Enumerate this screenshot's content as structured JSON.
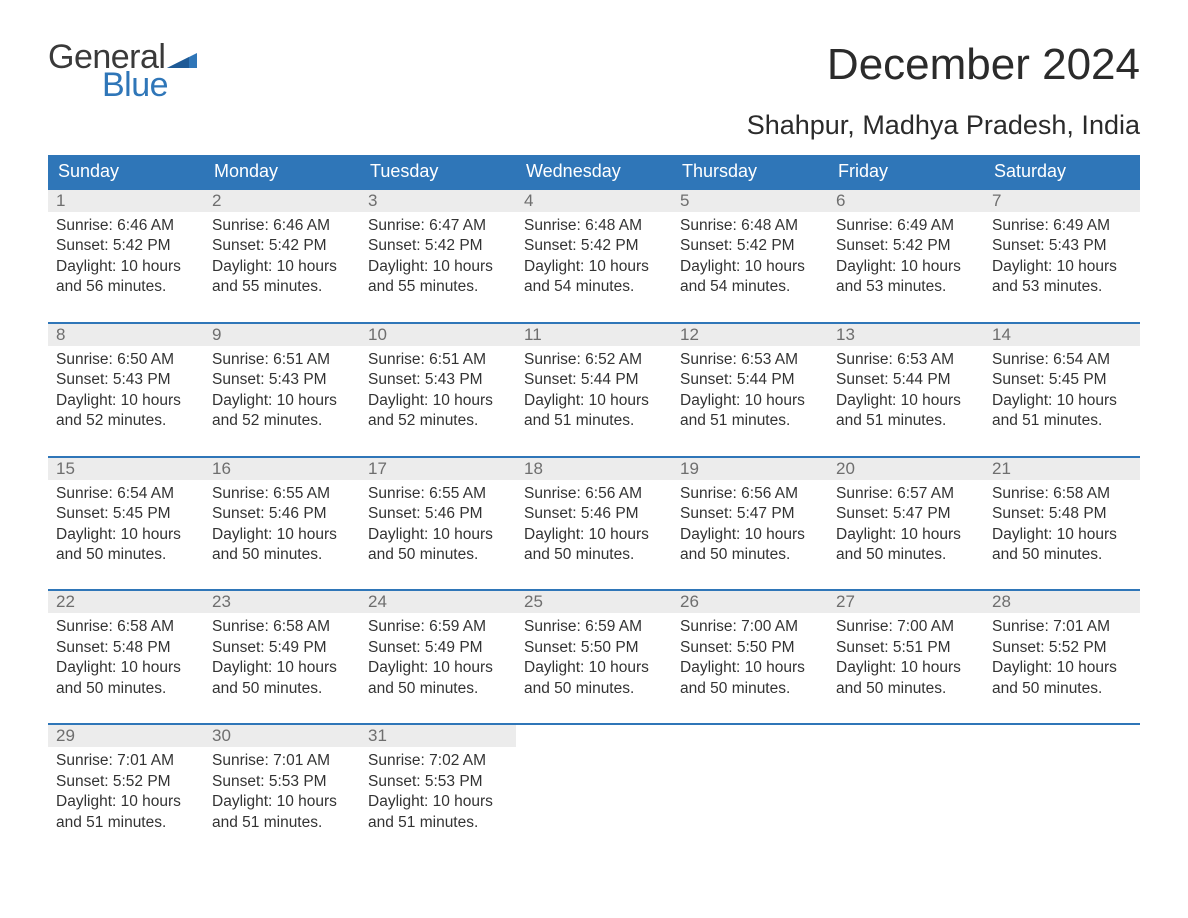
{
  "logo": {
    "general": "General",
    "blue": "Blue",
    "flag_color": "#2f76b8"
  },
  "title": "December 2024",
  "subtitle": "Shahpur, Madhya Pradesh, India",
  "colors": {
    "header_bg": "#2f76b8",
    "header_text": "#ffffff",
    "daynum_bg": "#ececec",
    "daynum_text": "#6e6e6e",
    "body_text": "#333333",
    "week_border": "#2f76b8",
    "page_bg": "#ffffff"
  },
  "day_names": [
    "Sunday",
    "Monday",
    "Tuesday",
    "Wednesday",
    "Thursday",
    "Friday",
    "Saturday"
  ],
  "weeks": [
    [
      {
        "n": "1",
        "sunrise": "Sunrise: 6:46 AM",
        "sunset": "Sunset: 5:42 PM",
        "dl1": "Daylight: 10 hours",
        "dl2": "and 56 minutes."
      },
      {
        "n": "2",
        "sunrise": "Sunrise: 6:46 AM",
        "sunset": "Sunset: 5:42 PM",
        "dl1": "Daylight: 10 hours",
        "dl2": "and 55 minutes."
      },
      {
        "n": "3",
        "sunrise": "Sunrise: 6:47 AM",
        "sunset": "Sunset: 5:42 PM",
        "dl1": "Daylight: 10 hours",
        "dl2": "and 55 minutes."
      },
      {
        "n": "4",
        "sunrise": "Sunrise: 6:48 AM",
        "sunset": "Sunset: 5:42 PM",
        "dl1": "Daylight: 10 hours",
        "dl2": "and 54 minutes."
      },
      {
        "n": "5",
        "sunrise": "Sunrise: 6:48 AM",
        "sunset": "Sunset: 5:42 PM",
        "dl1": "Daylight: 10 hours",
        "dl2": "and 54 minutes."
      },
      {
        "n": "6",
        "sunrise": "Sunrise: 6:49 AM",
        "sunset": "Sunset: 5:42 PM",
        "dl1": "Daylight: 10 hours",
        "dl2": "and 53 minutes."
      },
      {
        "n": "7",
        "sunrise": "Sunrise: 6:49 AM",
        "sunset": "Sunset: 5:43 PM",
        "dl1": "Daylight: 10 hours",
        "dl2": "and 53 minutes."
      }
    ],
    [
      {
        "n": "8",
        "sunrise": "Sunrise: 6:50 AM",
        "sunset": "Sunset: 5:43 PM",
        "dl1": "Daylight: 10 hours",
        "dl2": "and 52 minutes."
      },
      {
        "n": "9",
        "sunrise": "Sunrise: 6:51 AM",
        "sunset": "Sunset: 5:43 PM",
        "dl1": "Daylight: 10 hours",
        "dl2": "and 52 minutes."
      },
      {
        "n": "10",
        "sunrise": "Sunrise: 6:51 AM",
        "sunset": "Sunset: 5:43 PM",
        "dl1": "Daylight: 10 hours",
        "dl2": "and 52 minutes."
      },
      {
        "n": "11",
        "sunrise": "Sunrise: 6:52 AM",
        "sunset": "Sunset: 5:44 PM",
        "dl1": "Daylight: 10 hours",
        "dl2": "and 51 minutes."
      },
      {
        "n": "12",
        "sunrise": "Sunrise: 6:53 AM",
        "sunset": "Sunset: 5:44 PM",
        "dl1": "Daylight: 10 hours",
        "dl2": "and 51 minutes."
      },
      {
        "n": "13",
        "sunrise": "Sunrise: 6:53 AM",
        "sunset": "Sunset: 5:44 PM",
        "dl1": "Daylight: 10 hours",
        "dl2": "and 51 minutes."
      },
      {
        "n": "14",
        "sunrise": "Sunrise: 6:54 AM",
        "sunset": "Sunset: 5:45 PM",
        "dl1": "Daylight: 10 hours",
        "dl2": "and 51 minutes."
      }
    ],
    [
      {
        "n": "15",
        "sunrise": "Sunrise: 6:54 AM",
        "sunset": "Sunset: 5:45 PM",
        "dl1": "Daylight: 10 hours",
        "dl2": "and 50 minutes."
      },
      {
        "n": "16",
        "sunrise": "Sunrise: 6:55 AM",
        "sunset": "Sunset: 5:46 PM",
        "dl1": "Daylight: 10 hours",
        "dl2": "and 50 minutes."
      },
      {
        "n": "17",
        "sunrise": "Sunrise: 6:55 AM",
        "sunset": "Sunset: 5:46 PM",
        "dl1": "Daylight: 10 hours",
        "dl2": "and 50 minutes."
      },
      {
        "n": "18",
        "sunrise": "Sunrise: 6:56 AM",
        "sunset": "Sunset: 5:46 PM",
        "dl1": "Daylight: 10 hours",
        "dl2": "and 50 minutes."
      },
      {
        "n": "19",
        "sunrise": "Sunrise: 6:56 AM",
        "sunset": "Sunset: 5:47 PM",
        "dl1": "Daylight: 10 hours",
        "dl2": "and 50 minutes."
      },
      {
        "n": "20",
        "sunrise": "Sunrise: 6:57 AM",
        "sunset": "Sunset: 5:47 PM",
        "dl1": "Daylight: 10 hours",
        "dl2": "and 50 minutes."
      },
      {
        "n": "21",
        "sunrise": "Sunrise: 6:58 AM",
        "sunset": "Sunset: 5:48 PM",
        "dl1": "Daylight: 10 hours",
        "dl2": "and 50 minutes."
      }
    ],
    [
      {
        "n": "22",
        "sunrise": "Sunrise: 6:58 AM",
        "sunset": "Sunset: 5:48 PM",
        "dl1": "Daylight: 10 hours",
        "dl2": "and 50 minutes."
      },
      {
        "n": "23",
        "sunrise": "Sunrise: 6:58 AM",
        "sunset": "Sunset: 5:49 PM",
        "dl1": "Daylight: 10 hours",
        "dl2": "and 50 minutes."
      },
      {
        "n": "24",
        "sunrise": "Sunrise: 6:59 AM",
        "sunset": "Sunset: 5:49 PM",
        "dl1": "Daylight: 10 hours",
        "dl2": "and 50 minutes."
      },
      {
        "n": "25",
        "sunrise": "Sunrise: 6:59 AM",
        "sunset": "Sunset: 5:50 PM",
        "dl1": "Daylight: 10 hours",
        "dl2": "and 50 minutes."
      },
      {
        "n": "26",
        "sunrise": "Sunrise: 7:00 AM",
        "sunset": "Sunset: 5:50 PM",
        "dl1": "Daylight: 10 hours",
        "dl2": "and 50 minutes."
      },
      {
        "n": "27",
        "sunrise": "Sunrise: 7:00 AM",
        "sunset": "Sunset: 5:51 PM",
        "dl1": "Daylight: 10 hours",
        "dl2": "and 50 minutes."
      },
      {
        "n": "28",
        "sunrise": "Sunrise: 7:01 AM",
        "sunset": "Sunset: 5:52 PM",
        "dl1": "Daylight: 10 hours",
        "dl2": "and 50 minutes."
      }
    ],
    [
      {
        "n": "29",
        "sunrise": "Sunrise: 7:01 AM",
        "sunset": "Sunset: 5:52 PM",
        "dl1": "Daylight: 10 hours",
        "dl2": "and 51 minutes."
      },
      {
        "n": "30",
        "sunrise": "Sunrise: 7:01 AM",
        "sunset": "Sunset: 5:53 PM",
        "dl1": "Daylight: 10 hours",
        "dl2": "and 51 minutes."
      },
      {
        "n": "31",
        "sunrise": "Sunrise: 7:02 AM",
        "sunset": "Sunset: 5:53 PM",
        "dl1": "Daylight: 10 hours",
        "dl2": "and 51 minutes."
      },
      {
        "empty": true
      },
      {
        "empty": true
      },
      {
        "empty": true
      },
      {
        "empty": true
      }
    ]
  ]
}
